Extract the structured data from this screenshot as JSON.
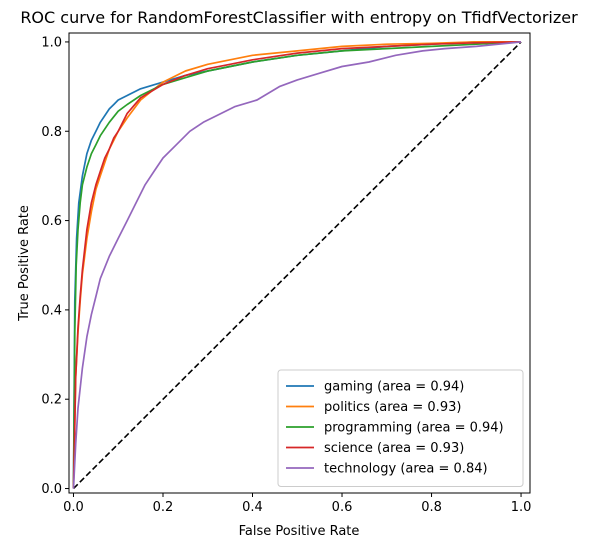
{
  "chart_data": {
    "type": "line",
    "title": "ROC curve for RandomForestClassifier with entropy on TfidfVectorizer",
    "xlabel": "False Positive Rate",
    "ylabel": "True Positive Rate",
    "xlim": [
      -0.01,
      1.02
    ],
    "ylim": [
      -0.01,
      1.02
    ],
    "xticks": [
      0.0,
      0.2,
      0.4,
      0.6,
      0.8,
      1.0
    ],
    "xtick_labels": [
      "0.0",
      "0.2",
      "0.4",
      "0.6",
      "0.8",
      "1.0"
    ],
    "yticks": [
      0.0,
      0.2,
      0.4,
      0.6,
      0.8,
      1.0
    ],
    "ytick_labels": [
      "0.0",
      "0.2",
      "0.4",
      "0.6",
      "0.8",
      "1.0"
    ],
    "grid": false,
    "legend_position": "lower-right",
    "diagonal": {
      "x": [
        0,
        1
      ],
      "y": [
        0,
        1
      ],
      "color": "#000000",
      "style": "dashed"
    },
    "series": [
      {
        "name": "gaming (area = 0.94)",
        "color": "#1f77b4",
        "x": [
          0,
          0.003,
          0.007,
          0.012,
          0.02,
          0.03,
          0.04,
          0.05,
          0.06,
          0.07,
          0.08,
          0.09,
          0.1,
          0.12,
          0.15,
          0.2,
          0.25,
          0.3,
          0.35,
          0.4,
          0.5,
          0.6,
          0.7,
          0.8,
          0.9,
          1.0
        ],
        "y": [
          0,
          0.42,
          0.56,
          0.64,
          0.7,
          0.75,
          0.78,
          0.8,
          0.82,
          0.835,
          0.85,
          0.86,
          0.87,
          0.88,
          0.895,
          0.91,
          0.925,
          0.935,
          0.945,
          0.955,
          0.97,
          0.98,
          0.99,
          0.995,
          1.0,
          1.0
        ]
      },
      {
        "name": "politics (area = 0.93)",
        "color": "#ff7f0e",
        "x": [
          0,
          0.005,
          0.01,
          0.015,
          0.02,
          0.03,
          0.04,
          0.05,
          0.06,
          0.07,
          0.08,
          0.09,
          0.1,
          0.12,
          0.15,
          0.2,
          0.25,
          0.3,
          0.35,
          0.4,
          0.5,
          0.6,
          0.7,
          0.8,
          0.9,
          1.0
        ],
        "y": [
          0,
          0.25,
          0.35,
          0.42,
          0.48,
          0.56,
          0.62,
          0.67,
          0.7,
          0.73,
          0.76,
          0.78,
          0.8,
          0.83,
          0.87,
          0.91,
          0.935,
          0.95,
          0.96,
          0.97,
          0.98,
          0.99,
          0.995,
          0.997,
          1.0,
          1.0
        ]
      },
      {
        "name": "programming (area = 0.94)",
        "color": "#2ca02c",
        "x": [
          0,
          0.003,
          0.006,
          0.01,
          0.015,
          0.02,
          0.03,
          0.04,
          0.05,
          0.06,
          0.08,
          0.1,
          0.12,
          0.15,
          0.2,
          0.25,
          0.3,
          0.35,
          0.4,
          0.5,
          0.6,
          0.7,
          0.8,
          0.9,
          1.0
        ],
        "y": [
          0,
          0.35,
          0.5,
          0.58,
          0.64,
          0.68,
          0.72,
          0.75,
          0.77,
          0.79,
          0.82,
          0.845,
          0.86,
          0.88,
          0.905,
          0.92,
          0.935,
          0.945,
          0.955,
          0.97,
          0.98,
          0.985,
          0.99,
          0.995,
          1.0
        ]
      },
      {
        "name": "science (area = 0.93)",
        "color": "#d62728",
        "x": [
          0,
          0.005,
          0.01,
          0.015,
          0.02,
          0.03,
          0.04,
          0.05,
          0.06,
          0.07,
          0.08,
          0.09,
          0.1,
          0.12,
          0.15,
          0.2,
          0.25,
          0.3,
          0.35,
          0.4,
          0.5,
          0.6,
          0.7,
          0.8,
          0.9,
          1.0
        ],
        "y": [
          0,
          0.25,
          0.36,
          0.43,
          0.49,
          0.58,
          0.64,
          0.68,
          0.71,
          0.74,
          0.76,
          0.785,
          0.8,
          0.84,
          0.875,
          0.905,
          0.925,
          0.94,
          0.95,
          0.96,
          0.975,
          0.985,
          0.99,
          0.995,
          0.998,
          1.0
        ]
      },
      {
        "name": "technology (area = 0.84)",
        "color": "#9467bd",
        "x": [
          0,
          0.005,
          0.01,
          0.02,
          0.03,
          0.04,
          0.05,
          0.06,
          0.08,
          0.1,
          0.12,
          0.14,
          0.16,
          0.18,
          0.2,
          0.23,
          0.26,
          0.29,
          0.32,
          0.36,
          0.41,
          0.46,
          0.5,
          0.55,
          0.6,
          0.66,
          0.72,
          0.78,
          0.83,
          0.9,
          0.95,
          1.0
        ],
        "y": [
          0,
          0.1,
          0.18,
          0.27,
          0.34,
          0.39,
          0.43,
          0.47,
          0.52,
          0.56,
          0.6,
          0.64,
          0.68,
          0.71,
          0.74,
          0.77,
          0.8,
          0.82,
          0.835,
          0.855,
          0.87,
          0.9,
          0.915,
          0.93,
          0.945,
          0.955,
          0.97,
          0.98,
          0.985,
          0.99,
          0.995,
          1.0
        ]
      }
    ]
  }
}
